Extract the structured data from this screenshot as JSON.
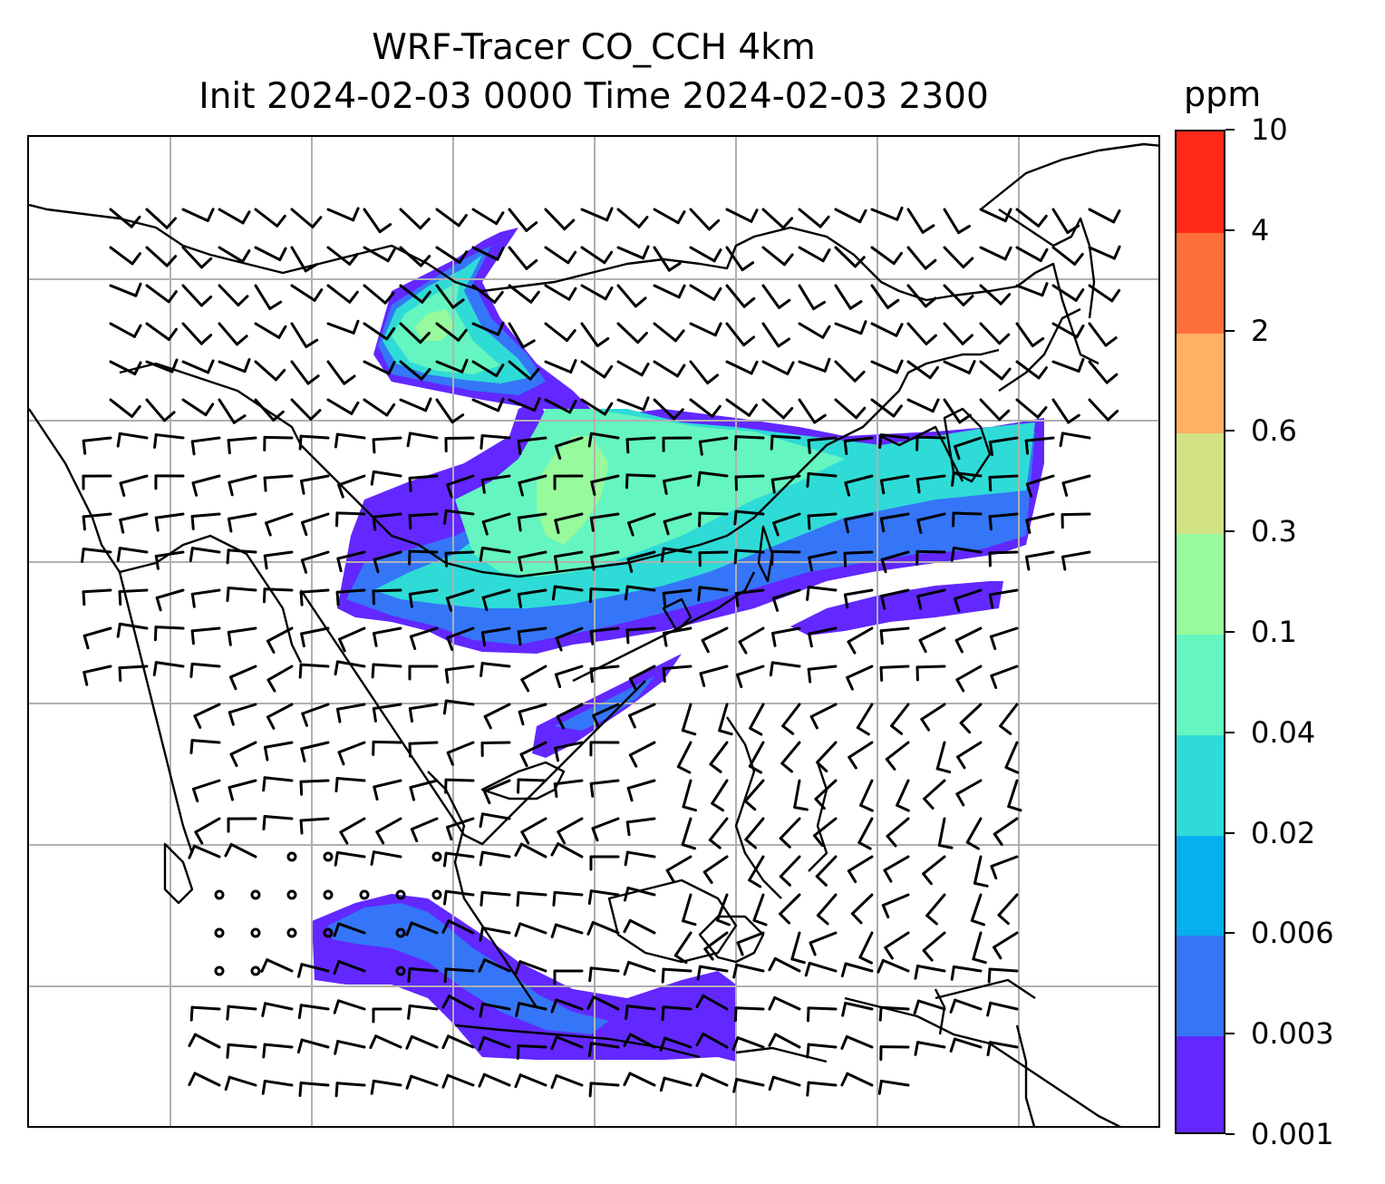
{
  "title": {
    "line1": "WRF-Tracer CO_CCH 4km",
    "line2": "Init 2024-02-03 0000 Time 2024-02-03 2300"
  },
  "colorbar": {
    "unit": "ppm",
    "levels": [
      "0.001",
      "0.003",
      "0.006",
      "0.02",
      "0.04",
      "0.1",
      "0.3",
      "0.6",
      "2",
      "4",
      "10"
    ],
    "colors": [
      "#6228ff",
      "#3476f7",
      "#06b0ef",
      "#2fdbd6",
      "#65f5c0",
      "#97fa9c",
      "#d1e284",
      "#ffb062",
      "#ff6f3b",
      "#ff2a17"
    ]
  },
  "map": {
    "gridlines": true,
    "wind_barbs": true,
    "fill_colors": {
      "faint": "#6228ff",
      "low": "#3476f7",
      "mid": "#2fdbd6",
      "high": "#65f5c0",
      "peak": "#97fa9c"
    }
  }
}
